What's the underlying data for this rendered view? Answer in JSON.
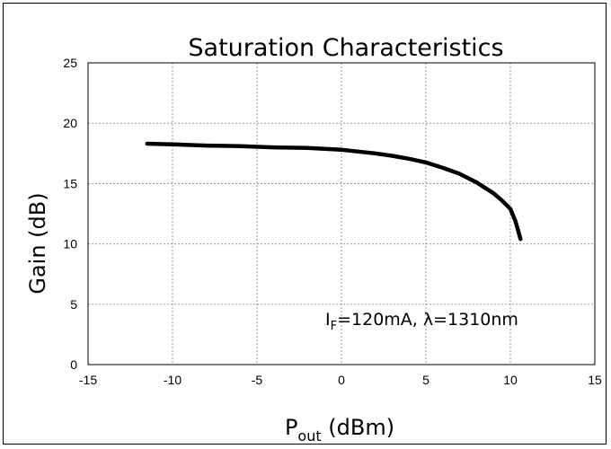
{
  "chart_data": {
    "type": "line",
    "title": "Saturation Characteristics",
    "xlabel": {
      "main": "P",
      "sub": "out",
      "rest": " (dBm)"
    },
    "ylabel": "Gain (dB)",
    "xlim": [
      -15,
      15
    ],
    "ylim": [
      0,
      25
    ],
    "xticks": [
      -15,
      -10,
      -5,
      0,
      5,
      10,
      15
    ],
    "yticks": [
      0,
      5,
      10,
      15,
      20,
      25
    ],
    "grid": true,
    "annotation": {
      "pre": "I",
      "sub": "F",
      "post": "=120mA, λ=1310nm"
    },
    "series": [
      {
        "color": "#000000",
        "x": [
          -11.5,
          -10,
          -8,
          -6,
          -4,
          -2,
          0,
          1,
          2,
          3,
          4,
          5,
          6,
          7,
          8,
          9,
          9.5,
          10,
          10.3,
          10.6
        ],
        "y": [
          18.3,
          18.25,
          18.15,
          18.1,
          18.0,
          17.95,
          17.8,
          17.65,
          17.5,
          17.3,
          17.05,
          16.75,
          16.3,
          15.8,
          15.1,
          14.2,
          13.6,
          12.9,
          11.9,
          10.4
        ]
      }
    ]
  }
}
